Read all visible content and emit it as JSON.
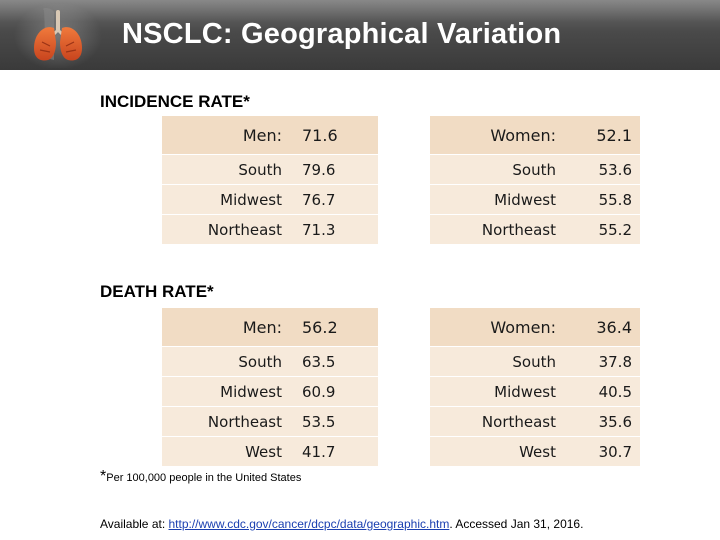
{
  "header": {
    "title": "NSCLC: Geographical Variation",
    "logo_icon": "lungs-icon"
  },
  "incidence": {
    "label": "INCIDENCE RATE*",
    "men": {
      "head_label": "Men:",
      "head_value": "71.6",
      "rows": [
        {
          "region": "South",
          "value": "79.6"
        },
        {
          "region": "Midwest",
          "value": "76.7"
        },
        {
          "region": "Northeast",
          "value": "71.3"
        }
      ]
    },
    "women": {
      "head_label": "Women:",
      "head_value": "52.1",
      "rows": [
        {
          "region": "South",
          "value": "53.6"
        },
        {
          "region": "Midwest",
          "value": "55.8"
        },
        {
          "region": "Northeast",
          "value": "55.2"
        }
      ]
    }
  },
  "death": {
    "label": "DEATH RATE*",
    "men": {
      "head_label": "Men:",
      "head_value": "56.2",
      "rows": [
        {
          "region": "South",
          "value": "63.5"
        },
        {
          "region": "Midwest",
          "value": "60.9"
        },
        {
          "region": "Northeast",
          "value": "53.5"
        },
        {
          "region": "West",
          "value": "41.7"
        }
      ]
    },
    "women": {
      "head_label": "Women:",
      "head_value": "36.4",
      "rows": [
        {
          "region": "South",
          "value": "37.8"
        },
        {
          "region": "Midwest",
          "value": "40.5"
        },
        {
          "region": "Northeast",
          "value": "35.6"
        },
        {
          "region": "West",
          "value": "30.7"
        }
      ]
    }
  },
  "footnote": {
    "star": "*",
    "text": "Per 100,000 people in the United States"
  },
  "source": {
    "prefix": "Available at: ",
    "link": "http://www.cdc.gov/cancer/dcpc/data/geographic.htm",
    "suffix": ". Accessed Jan 31, 2016."
  }
}
